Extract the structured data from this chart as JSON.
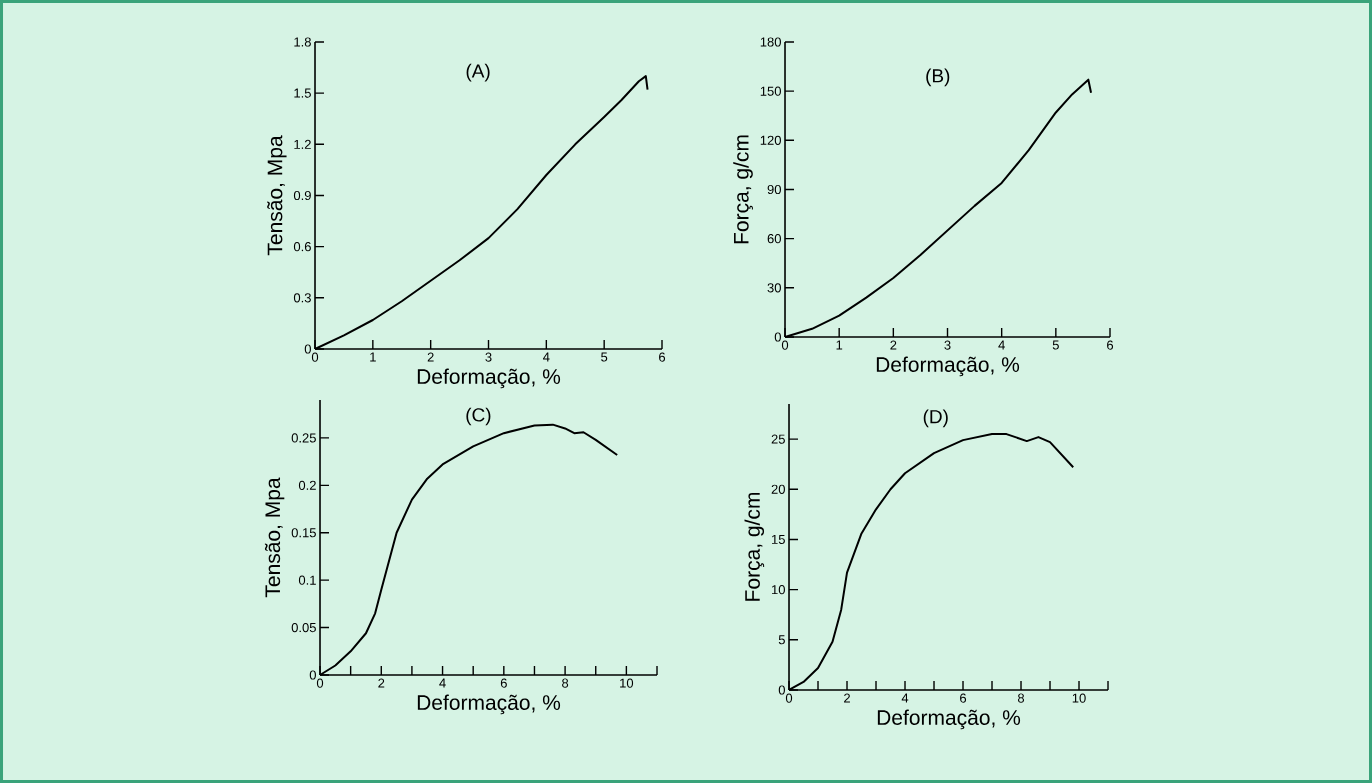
{
  "chart_data": [
    {
      "type": "line",
      "annotations": [
        "(A)"
      ],
      "xlabel": "Deformação, %",
      "ylabel": "Tensão, Mpa",
      "color": "#000000",
      "xlim": [
        0,
        6
      ],
      "ylim": [
        0,
        1.8
      ],
      "xticks": [
        0,
        1,
        2,
        3,
        4,
        5,
        6
      ],
      "yticks": [
        0,
        0.3,
        0.6,
        0.9,
        1.2,
        1.5,
        1.8
      ],
      "x": [
        0,
        0.5,
        1,
        1.5,
        2,
        2.5,
        3,
        3.5,
        4,
        4.5,
        5,
        5.3,
        5.6,
        5.72,
        5.75
      ],
      "values": [
        0,
        0.08,
        0.17,
        0.28,
        0.4,
        0.52,
        0.65,
        0.82,
        1.02,
        1.2,
        1.36,
        1.46,
        1.57,
        1.6,
        1.52
      ]
    },
    {
      "type": "line",
      "annotations": [
        "(B)"
      ],
      "xlabel": "Deformação, %",
      "ylabel": "Força, g/cm",
      "color": "#000000",
      "xlim": [
        0,
        6
      ],
      "ylim": [
        0,
        180
      ],
      "xticks": [
        0,
        1,
        2,
        3,
        4,
        5,
        6
      ],
      "yticks": [
        0,
        30,
        60,
        90,
        120,
        150,
        180
      ],
      "x": [
        0,
        0.5,
        1,
        1.5,
        2,
        2.5,
        3,
        3.5,
        4,
        4.5,
        5,
        5.3,
        5.6,
        5.65
      ],
      "values": [
        0,
        5,
        13,
        24,
        36,
        50,
        65,
        80,
        94,
        114,
        137,
        148,
        157,
        149
      ]
    },
    {
      "type": "line",
      "annotations": [
        "(C)"
      ],
      "xlabel": "Deformação, %",
      "ylabel": "Tensão, Mpa",
      "color": "#000000",
      "xlim": [
        0,
        11
      ],
      "ylim": [
        0,
        0.29
      ],
      "xticks": [
        0,
        {
          "value": 1,
          "label": null
        },
        2,
        {
          "value": 3,
          "label": null
        },
        4,
        {
          "value": 5,
          "label": null
        },
        6,
        {
          "value": 7,
          "label": null
        },
        8,
        {
          "value": 9,
          "label": null
        },
        10,
        {
          "value": 11,
          "label": null
        }
      ],
      "yticks": [
        0,
        0.05,
        0.1,
        0.15,
        0.2,
        0.25
      ],
      "x": [
        0,
        0.5,
        1,
        1.5,
        1.8,
        2,
        2.5,
        3,
        3.5,
        4,
        5,
        6,
        7,
        7.6,
        8,
        8.3,
        8.6,
        9,
        9.7
      ],
      "values": [
        0,
        0.01,
        0.025,
        0.044,
        0.065,
        0.09,
        0.15,
        0.185,
        0.207,
        0.222,
        0.241,
        0.255,
        0.263,
        0.264,
        0.26,
        0.255,
        0.256,
        0.248,
        0.232
      ]
    },
    {
      "type": "line",
      "annotations": [
        "(D)"
      ],
      "xlabel": "Deformação, %",
      "ylabel": "Força, g/cm",
      "color": "#000000",
      "xlim": [
        0,
        11
      ],
      "ylim": [
        0,
        28.5
      ],
      "xticks": [
        0,
        {
          "value": 1,
          "label": null
        },
        2,
        {
          "value": 3,
          "label": null
        },
        4,
        {
          "value": 5,
          "label": null
        },
        6,
        {
          "value": 7,
          "label": null
        },
        8,
        {
          "value": 9,
          "label": null
        },
        10,
        {
          "value": 11,
          "label": null
        }
      ],
      "yticks": [
        0,
        5,
        10,
        15,
        20,
        25
      ],
      "x": [
        0,
        0.5,
        1,
        1.5,
        1.8,
        2,
        2.5,
        3,
        3.5,
        4,
        5,
        6,
        7,
        7.5,
        8.2,
        8.6,
        9,
        9.8
      ],
      "values": [
        0,
        0.8,
        2.2,
        4.8,
        8,
        11.7,
        15.6,
        18,
        20,
        21.6,
        23.6,
        24.9,
        25.5,
        25.5,
        24.8,
        25.2,
        24.7,
        22.2
      ]
    }
  ]
}
